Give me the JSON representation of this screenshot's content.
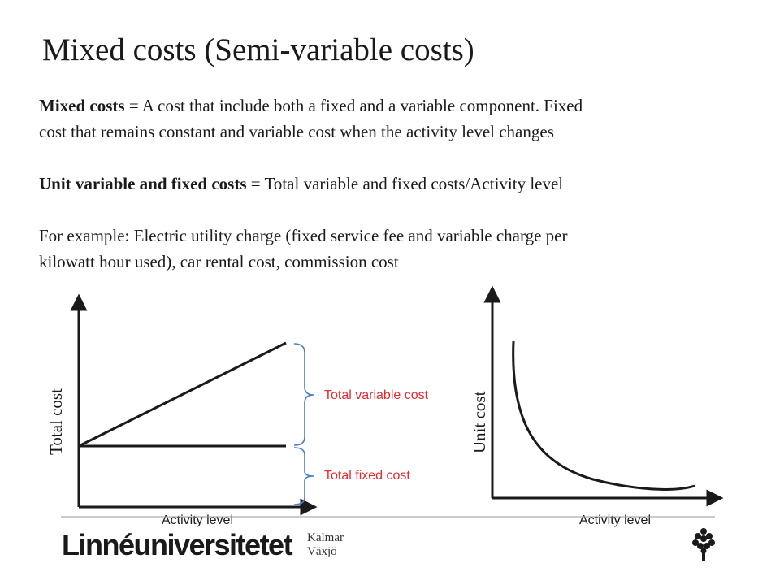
{
  "title": "Mixed costs (Semi-variable costs)",
  "definition": {
    "term": "Mixed costs",
    "text_line1": " = A cost that include both a fixed and a variable component. Fixed",
    "text_line2": "cost that remains constant  and variable cost when the activity level changes"
  },
  "unit_costs": {
    "term": "Unit variable and fixed costs",
    "text": " = Total variable and fixed costs/Activity level"
  },
  "example": {
    "line1": "For example: Electric utility charge (fixed service fee and variable charge per",
    "line2": "kilowatt hour used), car rental cost, commission cost"
  },
  "left_diagram": {
    "y_label": "Total cost",
    "x_label": "Activity level",
    "variable_label": "Total variable cost",
    "fixed_label": "Total fixed cost"
  },
  "right_diagram": {
    "y_label": "Unit cost",
    "x_label": "Activity level"
  },
  "footer": {
    "logo_text": "Linnéuniversitetet",
    "city1": "Kalmar",
    "city2": "Växjö"
  },
  "colors": {
    "label_red": "#e8292f",
    "brace_blue": "#4a7cc7",
    "ink": "#1a1a1a"
  }
}
